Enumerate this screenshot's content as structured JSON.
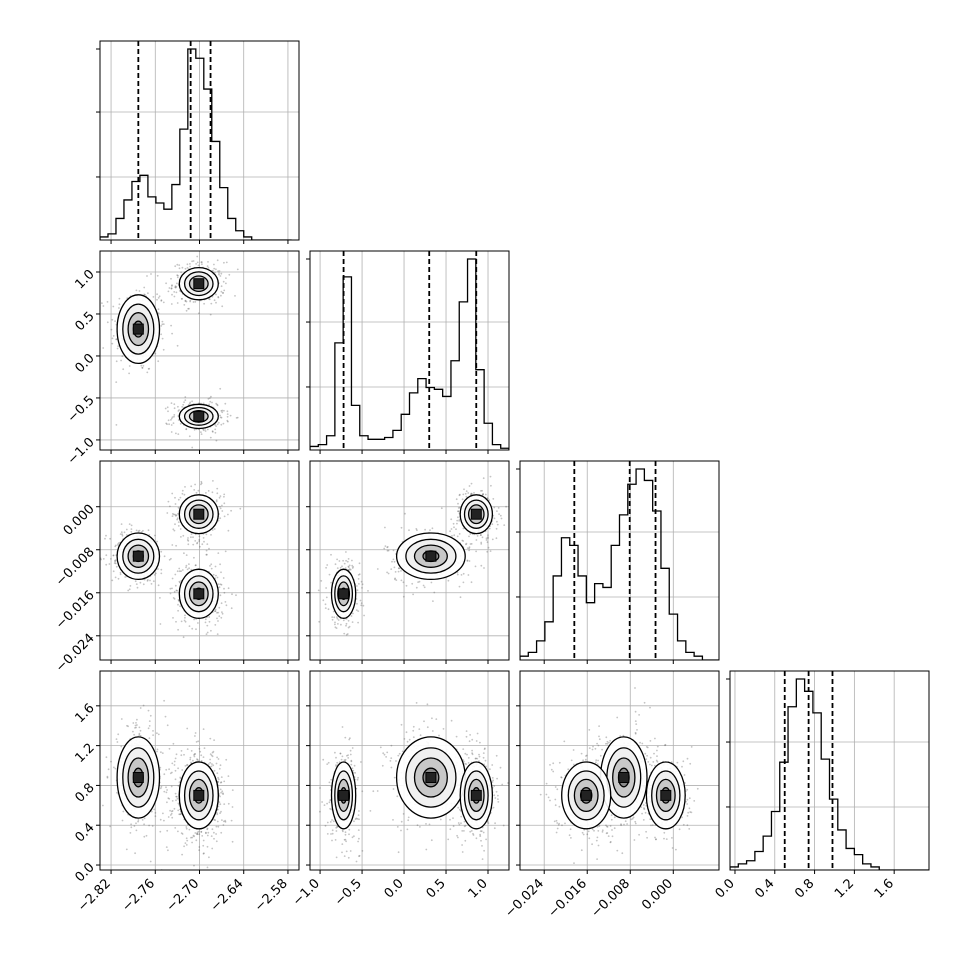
{
  "chart_data": {
    "type": "corner",
    "grid": true,
    "n_params": 4,
    "param_ranges": [
      [
        -2.835,
        -2.565
      ],
      [
        -1.12,
        1.25
      ],
      [
        -0.0285,
        0.0085
      ],
      [
        -0.05,
        1.95
      ]
    ],
    "axis_ticks": [
      {
        "values": [
          -2.82,
          -2.76,
          -2.7,
          -2.64,
          -2.58
        ],
        "labels": [
          "−2.82",
          "−2.76",
          "−2.70",
          "−2.64",
          "−2.58"
        ]
      },
      {
        "values": [
          -1.0,
          -0.5,
          0.0,
          0.5,
          1.0
        ],
        "labels": [
          "−1.0",
          "−0.5",
          "0.0",
          "0.5",
          "1.0"
        ]
      },
      {
        "values": [
          -0.024,
          -0.016,
          -0.008,
          0.0
        ],
        "labels": [
          "−0.024",
          "−0.016",
          "−0.008",
          "0.000"
        ]
      },
      {
        "values": [
          0.0,
          0.4,
          0.8,
          1.2,
          1.6
        ],
        "labels": [
          "0.0",
          "0.4",
          "0.8",
          "1.2",
          "1.6"
        ]
      }
    ],
    "quantiles": [
      [
        -2.783,
        -2.712,
        -2.685
      ],
      [
        -0.72,
        0.3,
        0.86
      ],
      [
        -0.0184,
        -0.0081,
        -0.0033
      ],
      [
        0.5,
        0.74,
        0.98
      ]
    ],
    "histograms": [
      {
        "edges_min": -2.835,
        "edges_max": -2.575,
        "counts": [
          1,
          2,
          7,
          13,
          19,
          21,
          14,
          12,
          10,
          18,
          36,
          62,
          59,
          49,
          32,
          17,
          7,
          3,
          1,
          0,
          0,
          0,
          0,
          0
        ]
      },
      {
        "edges_min": -1.12,
        "edges_max": 1.25,
        "counts": [
          2,
          3,
          8,
          60,
          97,
          25,
          8,
          6,
          6,
          7,
          11,
          20,
          32,
          40,
          35,
          34,
          30,
          50,
          83,
          107,
          45,
          15,
          3,
          1
        ]
      },
      {
        "edges_min": -0.0285,
        "edges_max": 0.0085,
        "counts": [
          1,
          2,
          5,
          10,
          22,
          32,
          30,
          22,
          15,
          20,
          19,
          30,
          38,
          46,
          50,
          47,
          39,
          24,
          12,
          5,
          2,
          1,
          0,
          0
        ]
      },
      {
        "edges_min": -0.05,
        "edges_max": 1.95,
        "counts": [
          1,
          2,
          3,
          6,
          11,
          19,
          35,
          53,
          62,
          58,
          51,
          36,
          23,
          13,
          7,
          5,
          2,
          1,
          0,
          0,
          0,
          0,
          0,
          0
        ]
      }
    ],
    "clusters": [
      {
        "mean": [
          -2.783,
          0.32,
          -0.0092,
          0.88
        ],
        "sd": [
          0.012,
          0.17,
          0.0018,
          0.17
        ],
        "weight": 0.3
      },
      {
        "mean": [
          -2.701,
          0.86,
          -0.0014,
          0.7
        ],
        "sd": [
          0.011,
          0.08,
          0.0015,
          0.14
        ],
        "weight": 0.35
      },
      {
        "mean": [
          -2.701,
          -0.72,
          -0.0162,
          0.7
        ],
        "sd": [
          0.011,
          0.06,
          0.0019,
          0.14
        ],
        "weight": 0.35
      }
    ]
  }
}
